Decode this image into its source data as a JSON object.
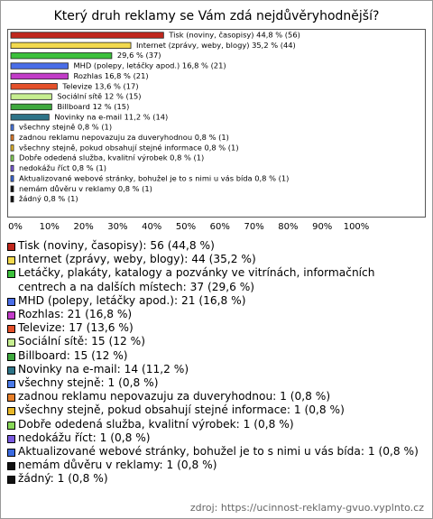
{
  "chart_data": {
    "type": "bar",
    "orientation": "horizontal",
    "title": "Který druh reklamy se Vám zdá nejdůvěryhodnější?",
    "values": [
      44.8,
      35.2,
      29.6,
      16.8,
      16.8,
      13.6,
      12,
      12,
      11.2,
      0.8,
      0.8,
      0.8,
      0.8,
      0.8,
      0.8,
      0.8,
      0.8
    ],
    "value_labels": [
      "Tisk (noviny, časopisy) 44,8 % (56)",
      "Internet (zprávy, weby, blogy) 35,2 % (44)",
      "29,6 % (37)",
      "MHD (polepy, letáčky apod.) 16,8 % (21)",
      "Rozhlas 16,8 % (21)",
      "Televize 13,6 % (17)",
      "Sociální sítě 12 % (15)",
      "Billboard 12 % (15)",
      "Novinky na e-mail 11,2 % (14)",
      "všechny stejně 0,8 % (1)",
      "zadnou reklamu nepovazuju za duveryhodnou 0,8 % (1)",
      "všechny stejně, pokud obsahují stejné informace 0,8 % (1)",
      "Dobře odedená služba, kvalitní výrobek 0,8 % (1)",
      "nedokážu říct 0,8 % (1)",
      "Aktualizované webové stránky, bohužel je to s nimi u vás bída 0,8 % (1)",
      "nemám důvěru v reklamy 0,8 % (1)",
      "žádný 0,8 % (1)"
    ],
    "colors": [
      "#c0281e",
      "#f2d94e",
      "#3cc03c",
      "#4a6ee8",
      "#c23cc8",
      "#e4502a",
      "#c6ee90",
      "#3ea83e",
      "#2e7488",
      "#4a7ae8",
      "#e8802a",
      "#e8b82a",
      "#88d858",
      "#7a5ae0",
      "#3a6ae0",
      "#111111",
      "#111111"
    ],
    "legend": [
      "Tisk (noviny, časopisy): 56 (44,8 %)",
      "Internet (zprávy, weby, blogy): 44 (35,2 %)",
      "Letáčky, plakáty, katalogy a pozvánky ve vitrínách, informačních centrech a na dalších místech: 37 (29,6 %)",
      "MHD (polepy, letáčky apod.): 21 (16,8 %)",
      "Rozhlas: 21 (16,8 %)",
      "Televize: 17 (13,6 %)",
      "Sociální sítě: 15 (12 %)",
      "Billboard: 15 (12 %)",
      "Novinky na e-mail: 14 (11,2 %)",
      "všechny stejně: 1 (0,8 %)",
      "zadnou reklamu nepovazuju za duveryhodnou: 1 (0,8 %)",
      "všechny stejně, pokud obsahují stejné informace: 1 (0,8 %)",
      "Dobře odedená služba, kvalitní výrobek: 1 (0,8 %)",
      "nedokážu říct: 1 (0,8 %)",
      "Aktualizované webové stránky, bohužel je to s nimi u vás bída: 1 (0,8 %)",
      "nemám důvěru v reklamy: 1 (0,8 %)",
      "žádný: 1 (0,8 %)"
    ],
    "xlim": [
      0,
      100
    ],
    "xticks": [
      {
        "value": 0,
        "label": "0%"
      },
      {
        "value": 10,
        "label": "10%"
      },
      {
        "value": 20,
        "label": "20%"
      },
      {
        "value": 30,
        "label": "30%"
      },
      {
        "value": 40,
        "label": "40%"
      },
      {
        "value": 50,
        "label": "50%"
      },
      {
        "value": 60,
        "label": "60%"
      },
      {
        "value": 70,
        "label": "70%"
      },
      {
        "value": 80,
        "label": "80%"
      },
      {
        "value": 90,
        "label": "90%"
      },
      {
        "value": 100,
        "label": "100%"
      }
    ],
    "source": "zdroj: https://ucinnost-reklamy-gvuo.vyplnto.cz"
  }
}
